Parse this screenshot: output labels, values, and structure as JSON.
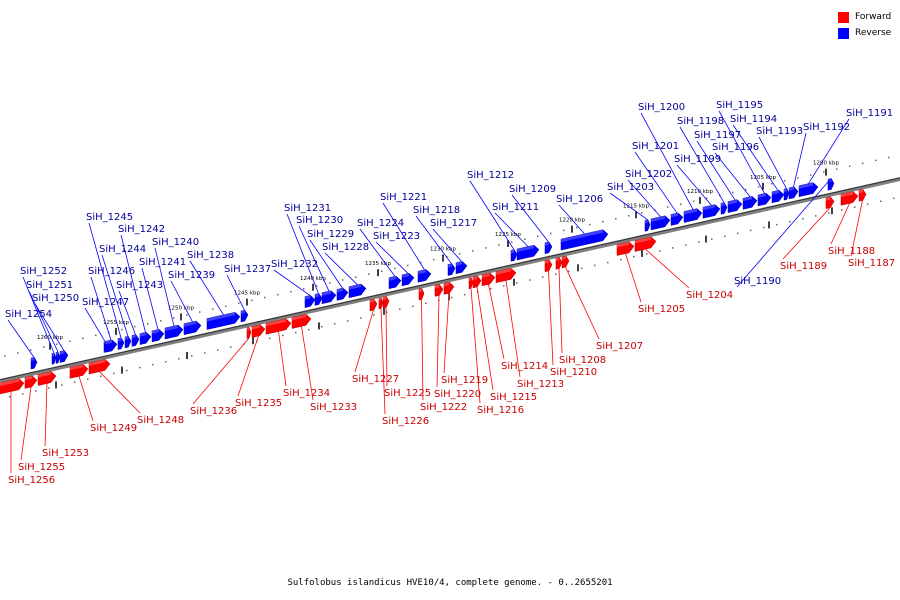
{
  "legend": {
    "items": [
      {
        "label": "Forward",
        "color": "#ff0000"
      },
      {
        "label": "Reverse",
        "color": "#0000ff"
      }
    ]
  },
  "caption": "Sulfolobus islandicus HVE10/4, complete genome. - 0..2655201",
  "colors": {
    "forward": "#ff0000",
    "reverse": "#0000ff",
    "backbone": "#808080",
    "label_forward": "#c80000",
    "label_reverse": "#000099"
  },
  "kbp_ticks": [
    {
      "kbp": 1200,
      "label": "1200 kbp"
    },
    {
      "kbp": 1205,
      "label": "1205 kbp"
    },
    {
      "kbp": 1210,
      "label": "1210 kbp"
    },
    {
      "kbp": 1215,
      "label": "1215 kbp"
    },
    {
      "kbp": 1220,
      "label": "1220 kbp"
    },
    {
      "kbp": 1225,
      "label": "1225 kbp"
    },
    {
      "kbp": 1230,
      "label": "1230 kbp"
    },
    {
      "kbp": 1235,
      "label": "1235 kbp"
    },
    {
      "kbp": 1240,
      "label": "1240 kbp"
    },
    {
      "kbp": 1245,
      "label": "1245 kbp"
    },
    {
      "kbp": 1250,
      "label": "1250 kbp"
    },
    {
      "kbp": 1255,
      "label": "1255 kbp"
    },
    {
      "kbp": 1260,
      "label": "1260 kbp"
    }
  ],
  "genes": [
    {
      "id": "SiH_1187",
      "strand": "forward"
    },
    {
      "id": "SiH_1188",
      "strand": "forward"
    },
    {
      "id": "SiH_1189",
      "strand": "forward"
    },
    {
      "id": "SiH_1190",
      "strand": "reverse"
    },
    {
      "id": "SiH_1191",
      "strand": "reverse"
    },
    {
      "id": "SiH_1192",
      "strand": "reverse"
    },
    {
      "id": "SiH_1193",
      "strand": "reverse"
    },
    {
      "id": "SiH_1194",
      "strand": "reverse"
    },
    {
      "id": "SiH_1195",
      "strand": "reverse"
    },
    {
      "id": "SiH_1196",
      "strand": "reverse"
    },
    {
      "id": "SiH_1197",
      "strand": "reverse"
    },
    {
      "id": "SiH_1198",
      "strand": "reverse"
    },
    {
      "id": "SiH_1199",
      "strand": "reverse"
    },
    {
      "id": "SiH_1200",
      "strand": "reverse"
    },
    {
      "id": "SiH_1201",
      "strand": "reverse"
    },
    {
      "id": "SiH_1202",
      "strand": "reverse"
    },
    {
      "id": "SiH_1203",
      "strand": "reverse"
    },
    {
      "id": "SiH_1204",
      "strand": "forward"
    },
    {
      "id": "SiH_1205",
      "strand": "forward"
    },
    {
      "id": "SiH_1206",
      "strand": "reverse"
    },
    {
      "id": "SiH_1207",
      "strand": "forward"
    },
    {
      "id": "SiH_1208",
      "strand": "forward"
    },
    {
      "id": "SiH_1209",
      "strand": "reverse"
    },
    {
      "id": "SiH_1210",
      "strand": "forward"
    },
    {
      "id": "SiH_1211",
      "strand": "reverse"
    },
    {
      "id": "SiH_1212",
      "strand": "reverse"
    },
    {
      "id": "SiH_1213",
      "strand": "forward"
    },
    {
      "id": "SiH_1214",
      "strand": "forward"
    },
    {
      "id": "SiH_1215",
      "strand": "forward"
    },
    {
      "id": "SiH_1216",
      "strand": "forward"
    },
    {
      "id": "SiH_1217",
      "strand": "reverse"
    },
    {
      "id": "SiH_1218",
      "strand": "reverse"
    },
    {
      "id": "SiH_1219",
      "strand": "forward"
    },
    {
      "id": "SiH_1220",
      "strand": "forward"
    },
    {
      "id": "SiH_1221",
      "strand": "reverse"
    },
    {
      "id": "SiH_1222",
      "strand": "forward"
    },
    {
      "id": "SiH_1223",
      "strand": "reverse"
    },
    {
      "id": "SiH_1224",
      "strand": "reverse"
    },
    {
      "id": "SiH_1225",
      "strand": "forward"
    },
    {
      "id": "SiH_1226",
      "strand": "forward"
    },
    {
      "id": "SiH_1227",
      "strand": "forward"
    },
    {
      "id": "SiH_1228",
      "strand": "reverse"
    },
    {
      "id": "SiH_1229",
      "strand": "reverse"
    },
    {
      "id": "SiH_1230",
      "strand": "reverse"
    },
    {
      "id": "SiH_1231",
      "strand": "reverse"
    },
    {
      "id": "SiH_1232",
      "strand": "reverse"
    },
    {
      "id": "SiH_1233",
      "strand": "forward"
    },
    {
      "id": "SiH_1234",
      "strand": "forward"
    },
    {
      "id": "SiH_1235",
      "strand": "forward"
    },
    {
      "id": "SiH_1236",
      "strand": "forward"
    },
    {
      "id": "SiH_1237",
      "strand": "reverse"
    },
    {
      "id": "SiH_1238",
      "strand": "reverse"
    },
    {
      "id": "SiH_1239",
      "strand": "reverse"
    },
    {
      "id": "SiH_1240",
      "strand": "reverse"
    },
    {
      "id": "SiH_1241",
      "strand": "reverse"
    },
    {
      "id": "SiH_1242",
      "strand": "reverse"
    },
    {
      "id": "SiH_1243",
      "strand": "reverse"
    },
    {
      "id": "SiH_1244",
      "strand": "reverse"
    },
    {
      "id": "SiH_1245",
      "strand": "reverse"
    },
    {
      "id": "SiH_1246",
      "strand": "reverse"
    },
    {
      "id": "SiH_1247",
      "strand": "reverse"
    },
    {
      "id": "SiH_1248",
      "strand": "forward"
    },
    {
      "id": "SiH_1249",
      "strand": "forward"
    },
    {
      "id": "SiH_1250",
      "strand": "reverse"
    },
    {
      "id": "SiH_1251",
      "strand": "reverse"
    },
    {
      "id": "SiH_1252",
      "strand": "reverse"
    },
    {
      "id": "SiH_1253",
      "strand": "forward"
    },
    {
      "id": "SiH_1254",
      "strand": "reverse"
    },
    {
      "id": "SiH_1255",
      "strand": "forward"
    },
    {
      "id": "SiH_1256",
      "strand": "forward"
    }
  ]
}
